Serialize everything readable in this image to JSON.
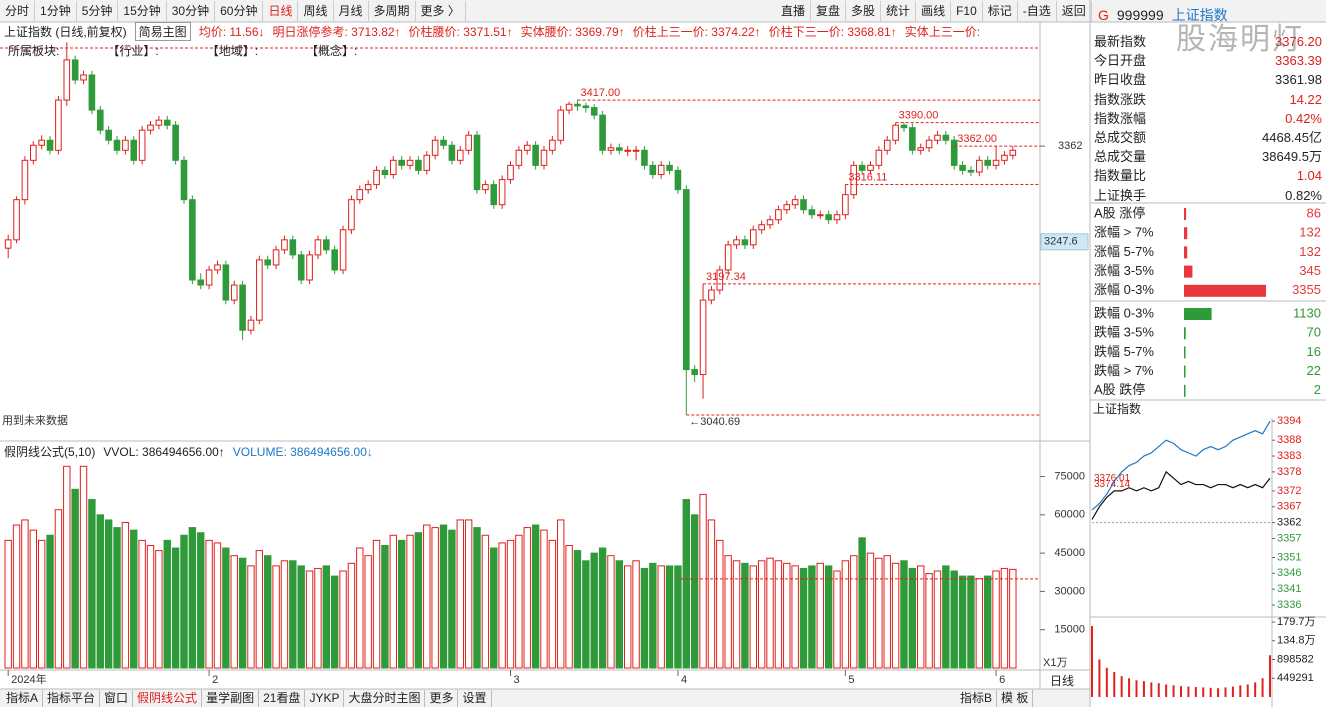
{
  "toolbar": {
    "left": [
      "分时",
      "1分钟",
      "5分钟",
      "15分钟",
      "30分钟",
      "60分钟",
      "日线",
      "周线",
      "月线",
      "多周期",
      "更多 〉"
    ],
    "active": "日线",
    "right": [
      "直播",
      "复盘",
      "多股",
      "统计",
      "画线",
      "F10",
      "标记",
      "-自选",
      "返回"
    ]
  },
  "info": {
    "title": "上证指数 (日线,前复权)",
    "template": "简易主图",
    "items": [
      "均价: 11.56↓",
      "明日涨停参考: 3713.82↑",
      "价柱腰价: 3371.51↑",
      "实体腰价: 3369.79↑",
      "价柱上三一价: 3374.22↑",
      "价柱下三一价: 3368.81↑",
      "实体上三一价:"
    ]
  },
  "sectors": [
    "所属板块:",
    "【行业】:",
    "【地域】:",
    "【概念】:"
  ],
  "future_note": "用到未来数据",
  "chart_data": [
    {
      "type": "candlestick",
      "up_color": "#e0201c",
      "down_color": "#2f9a3a",
      "ylim": [
        3010.8,
        3486.4
      ],
      "yticks": [
        3362
      ],
      "cursor": 3247.6,
      "xticks": [
        {
          "value": 0,
          "label": "2024年"
        },
        {
          "value": 24,
          "label": "2"
        },
        {
          "value": 60,
          "label": "3"
        },
        {
          "value": 80,
          "label": "4"
        },
        {
          "value": 100,
          "label": "5"
        },
        {
          "value": 118,
          "label": "6"
        }
      ],
      "annotations": [
        {
          "x": 68,
          "value": 3417,
          "label": "3417.00"
        },
        {
          "x": 106,
          "value": 3390,
          "label": "3390.00"
        },
        {
          "x": 113,
          "value": 3362,
          "label": "3362.00"
        },
        {
          "x": 100,
          "value": 3316.11,
          "label": "3316.11"
        },
        {
          "x": 83,
          "value": 3197.34,
          "label": "3197.34"
        },
        {
          "x": 81,
          "value": 3040.69,
          "label": "←3040.69"
        }
      ],
      "ohlc": [
        [
          3240,
          3256,
          3228,
          3250
        ],
        [
          3250,
          3302,
          3246,
          3298
        ],
        [
          3298,
          3350,
          3292,
          3345
        ],
        [
          3345,
          3368,
          3340,
          3363
        ],
        [
          3363,
          3375,
          3358,
          3369
        ],
        [
          3369,
          3374,
          3352,
          3357
        ],
        [
          3357,
          3422,
          3352,
          3417
        ],
        [
          3417,
          3486,
          3410,
          3465
        ],
        [
          3465,
          3470,
          3436,
          3441
        ],
        [
          3441,
          3452,
          3436,
          3447
        ],
        [
          3447,
          3452,
          3400,
          3405
        ],
        [
          3405,
          3410,
          3376,
          3381
        ],
        [
          3381,
          3386,
          3364,
          3369
        ],
        [
          3369,
          3374,
          3352,
          3357
        ],
        [
          3357,
          3374,
          3352,
          3369
        ],
        [
          3369,
          3374,
          3340,
          3345
        ],
        [
          3345,
          3386,
          3340,
          3381
        ],
        [
          3381,
          3392,
          3376,
          3387
        ],
        [
          3387,
          3398,
          3382,
          3393
        ],
        [
          3393,
          3398,
          3382,
          3387
        ],
        [
          3387,
          3392,
          3340,
          3345
        ],
        [
          3345,
          3350,
          3293,
          3298
        ],
        [
          3298,
          3303,
          3197,
          3202
        ],
        [
          3202,
          3210,
          3191,
          3196
        ],
        [
          3196,
          3219,
          3191,
          3214
        ],
        [
          3214,
          3225,
          3209,
          3220
        ],
        [
          3220,
          3225,
          3173,
          3178
        ],
        [
          3178,
          3201,
          3173,
          3196
        ],
        [
          3196,
          3201,
          3130,
          3142
        ],
        [
          3142,
          3159,
          3137,
          3154
        ],
        [
          3154,
          3231,
          3149,
          3226
        ],
        [
          3226,
          3231,
          3215,
          3220
        ],
        [
          3220,
          3243,
          3215,
          3238
        ],
        [
          3238,
          3255,
          3233,
          3250
        ],
        [
          3250,
          3255,
          3227,
          3232
        ],
        [
          3232,
          3237,
          3197,
          3202
        ],
        [
          3202,
          3237,
          3197,
          3232
        ],
        [
          3232,
          3255,
          3227,
          3250
        ],
        [
          3250,
          3255,
          3233,
          3238
        ],
        [
          3238,
          3243,
          3209,
          3214
        ],
        [
          3214,
          3267,
          3209,
          3262
        ],
        [
          3262,
          3303,
          3257,
          3298
        ],
        [
          3298,
          3315,
          3293,
          3310
        ],
        [
          3310,
          3321,
          3305,
          3316
        ],
        [
          3316,
          3338,
          3311,
          3333
        ],
        [
          3333,
          3338,
          3323,
          3328
        ],
        [
          3328,
          3350,
          3323,
          3345
        ],
        [
          3345,
          3350,
          3334,
          3339
        ],
        [
          3339,
          3350,
          3334,
          3345
        ],
        [
          3345,
          3350,
          3328,
          3333
        ],
        [
          3333,
          3356,
          3328,
          3351
        ],
        [
          3351,
          3374,
          3346,
          3369
        ],
        [
          3369,
          3374,
          3358,
          3363
        ],
        [
          3363,
          3368,
          3340,
          3345
        ],
        [
          3345,
          3362,
          3340,
          3357
        ],
        [
          3357,
          3380,
          3352,
          3375
        ],
        [
          3375,
          3380,
          3305,
          3310
        ],
        [
          3310,
          3321,
          3305,
          3316
        ],
        [
          3316,
          3321,
          3287,
          3292
        ],
        [
          3292,
          3327,
          3287,
          3322
        ],
        [
          3322,
          3344,
          3317,
          3339
        ],
        [
          3339,
          3362,
          3334,
          3357
        ],
        [
          3357,
          3368,
          3352,
          3363
        ],
        [
          3363,
          3368,
          3334,
          3339
        ],
        [
          3339,
          3362,
          3334,
          3357
        ],
        [
          3357,
          3374,
          3352,
          3369
        ],
        [
          3369,
          3410,
          3364,
          3405
        ],
        [
          3405,
          3415,
          3400,
          3412
        ],
        [
          3412,
          3417,
          3404,
          3410
        ],
        [
          3410,
          3414,
          3402,
          3408
        ],
        [
          3408,
          3412,
          3394,
          3399
        ],
        [
          3399,
          3404,
          3352,
          3357
        ],
        [
          3357,
          3365,
          3352,
          3360
        ],
        [
          3360,
          3365,
          3352,
          3357
        ],
        [
          3357,
          3362,
          3350,
          3357
        ],
        [
          3357,
          3362,
          3345,
          3357
        ],
        [
          3357,
          3362,
          3334,
          3339
        ],
        [
          3339,
          3344,
          3323,
          3328
        ],
        [
          3328,
          3344,
          3323,
          3339
        ],
        [
          3339,
          3344,
          3328,
          3333
        ],
        [
          3333,
          3338,
          3305,
          3310
        ],
        [
          3310,
          3315,
          3040.69,
          3095
        ],
        [
          3095,
          3100,
          3080,
          3089
        ],
        [
          3089,
          3197.34,
          3060,
          3178
        ],
        [
          3178,
          3195,
          3173,
          3190
        ],
        [
          3190,
          3219,
          3185,
          3214
        ],
        [
          3214,
          3249,
          3209,
          3244
        ],
        [
          3244,
          3255,
          3239,
          3250
        ],
        [
          3250,
          3255,
          3239,
          3244
        ],
        [
          3244,
          3267,
          3239,
          3262
        ],
        [
          3262,
          3273,
          3257,
          3268
        ],
        [
          3268,
          3279,
          3263,
          3274
        ],
        [
          3274,
          3291,
          3269,
          3286
        ],
        [
          3286,
          3297,
          3281,
          3292
        ],
        [
          3292,
          3303,
          3287,
          3298
        ],
        [
          3298,
          3303,
          3281,
          3286
        ],
        [
          3286,
          3291,
          3275,
          3280
        ],
        [
          3280,
          3285,
          3275,
          3280
        ],
        [
          3280,
          3285,
          3269,
          3274
        ],
        [
          3274,
          3285,
          3269,
          3280
        ],
        [
          3280,
          3316.11,
          3275,
          3304
        ],
        [
          3304,
          3344,
          3299,
          3339
        ],
        [
          3339,
          3344,
          3328,
          3333
        ],
        [
          3333,
          3344,
          3328,
          3339
        ],
        [
          3339,
          3362,
          3334,
          3357
        ],
        [
          3357,
          3374,
          3352,
          3369
        ],
        [
          3369,
          3390,
          3364,
          3387
        ],
        [
          3387,
          3390,
          3379,
          3384
        ],
        [
          3384,
          3389,
          3352,
          3357
        ],
        [
          3357,
          3365,
          3352,
          3360
        ],
        [
          3360,
          3374,
          3355,
          3369
        ],
        [
          3369,
          3380,
          3364,
          3375
        ],
        [
          3375,
          3380,
          3364,
          3369
        ],
        [
          3369,
          3374,
          3334,
          3339
        ],
        [
          3339,
          3344,
          3328,
          3333
        ],
        [
          3333,
          3338,
          3326,
          3331
        ],
        [
          3331,
          3350,
          3326,
          3345
        ],
        [
          3345,
          3350,
          3334,
          3339
        ],
        [
          3339,
          3362,
          3334,
          3345
        ],
        [
          3345,
          3356,
          3340,
          3351
        ],
        [
          3351,
          3362,
          3346,
          3357
        ]
      ]
    },
    {
      "type": "bar",
      "formula": "假阴线公式(5,10)",
      "indicators": [
        {
          "label": "VVOL: 386494656.00↑",
          "color": "#222"
        },
        {
          "label": "VOLUME: 386494656.00↓",
          "color": "#1e78c8"
        }
      ],
      "unit": "X1万",
      "up_color": "#e0201c",
      "down_color": "#2f9a3a",
      "ylim": [
        0,
        80700
      ],
      "yticks": [
        15000,
        30000,
        45000,
        60000,
        75000
      ],
      "reference": 34923,
      "values": [
        50000,
        56000,
        58000,
        54000,
        50000,
        52000,
        62000,
        79000,
        70000,
        79000,
        66000,
        60000,
        58000,
        55000,
        57000,
        54000,
        50000,
        48000,
        46000,
        50000,
        47000,
        52000,
        55000,
        53000,
        50000,
        49000,
        47000,
        44000,
        43000,
        40000,
        46000,
        44000,
        40000,
        42000,
        42000,
        40000,
        38000,
        39000,
        40000,
        36000,
        38000,
        41000,
        47000,
        44000,
        50000,
        48000,
        52000,
        50000,
        52000,
        53000,
        56000,
        55000,
        56000,
        54000,
        58000,
        58000,
        55000,
        52000,
        47000,
        49000,
        50000,
        52000,
        55000,
        56000,
        54000,
        50000,
        58000,
        48000,
        46000,
        42000,
        45000,
        47000,
        44000,
        42000,
        40000,
        42000,
        39000,
        41000,
        40000,
        40000,
        40000,
        66000,
        60000,
        68000,
        58000,
        50000,
        44000,
        42000,
        41000,
        40000,
        42000,
        43000,
        42000,
        41000,
        40000,
        39000,
        40000,
        41000,
        40000,
        38000,
        42000,
        44000,
        51000,
        45000,
        43000,
        44000,
        41000,
        42000,
        39000,
        40000,
        37000,
        38000,
        40000,
        38000,
        36000,
        36000,
        35000,
        36000,
        38000,
        39000,
        38649
      ]
    },
    {
      "type": "hbar",
      "categories": [
        "A股 涨停",
        "涨幅 > 7%",
        "涨幅 5-7%",
        "涨幅 3-5%",
        "涨幅 0-3%",
        "跌幅 0-3%",
        "跌幅 3-5%",
        "跌幅 5-7%",
        "跌幅 > 7%",
        "A股 跌停"
      ],
      "values": [
        86,
        132,
        132,
        345,
        3355,
        1130,
        70,
        16,
        22,
        2
      ],
      "colors": [
        "#e8383d",
        "#e8383d",
        "#e8383d",
        "#e8383d",
        "#e8383d",
        "#2f9a3a",
        "#2f9a3a",
        "#2f9a3a",
        "#2f9a3a",
        "#2f9a3a"
      ],
      "xlim": [
        0,
        3355
      ]
    },
    {
      "type": "line",
      "title": "上证指数",
      "base": 3362,
      "ylim": [
        3333.8,
        3395
      ],
      "yticks": [
        3394,
        3388,
        3383,
        3378,
        3372,
        3367,
        3362,
        3357,
        3351,
        3346,
        3341,
        3336
      ],
      "y2lim": [
        0,
        1797164
      ],
      "y2ticks": [
        {
          "value": 1797164,
          "label": "179.7万"
        },
        {
          "value": 1347873,
          "label": "134.8万"
        },
        898582,
        449291
      ],
      "annotations": [
        3376.01,
        3374.14
      ],
      "series": [
        {
          "color": "#1e78c8",
          "values": [
            3366,
            3368,
            3371,
            3375,
            3378,
            3380,
            3381,
            3383,
            3384,
            3386,
            3388,
            3387,
            3385,
            3384,
            3383,
            3385,
            3386,
            3385,
            3386,
            3388,
            3389,
            3390,
            3391,
            3390,
            3394
          ]
        },
        {
          "color": "#111",
          "values": [
            3363,
            3367,
            3370,
            3372,
            3372,
            3373,
            3372,
            3373,
            3372,
            3373,
            3378,
            3376,
            3374,
            3375,
            3374,
            3374,
            3373,
            3374,
            3374,
            3373,
            3374,
            3373,
            3374,
            3373,
            3376
          ]
        },
        {
          "axis": "y2",
          "color": "#e0201c",
          "values": [
            1700000,
            900000,
            700000,
            600000,
            500000,
            450000,
            400000,
            380000,
            350000,
            330000,
            300000,
            280000,
            260000,
            250000,
            240000,
            230000,
            220000,
            210000,
            230000,
            250000,
            280000,
            300000,
            350000,
            450000,
            1000000
          ]
        }
      ]
    }
  ],
  "quote": {
    "icon": "G",
    "code": "999999",
    "name": "上证指数",
    "watermark": "股海明灯",
    "stats": [
      {
        "label": "最新指数",
        "value": "3376.20",
        "color": "#e0201c"
      },
      {
        "label": "今日开盘",
        "value": "3363.39",
        "color": "#e0201c"
      },
      {
        "label": "昨日收盘",
        "value": "3361.98",
        "color": "#222"
      },
      {
        "label": "指数涨跌",
        "value": "14.22",
        "color": "#e0201c"
      },
      {
        "label": "指数涨幅",
        "value": "0.42%",
        "color": "#e0201c"
      },
      {
        "label": "总成交额",
        "value": "4468.45亿",
        "color": "#222"
      },
      {
        "label": "总成交量",
        "value": "38649.5万",
        "color": "#222"
      },
      {
        "label": "指数量比",
        "value": "1.04",
        "color": "#e0201c"
      },
      {
        "label": "上证换手",
        "value": "0.82%",
        "color": "#222"
      }
    ]
  },
  "tabs": {
    "left": [
      "指标A",
      "指标平台",
      "窗口",
      "假阴线公式",
      "量学副图",
      "21看盘",
      "JYKP",
      "大盘分时主图",
      "更多",
      "设置"
    ],
    "active": "假阴线公式",
    "right": [
      "指标B",
      "模 板"
    ]
  },
  "period": "日线"
}
